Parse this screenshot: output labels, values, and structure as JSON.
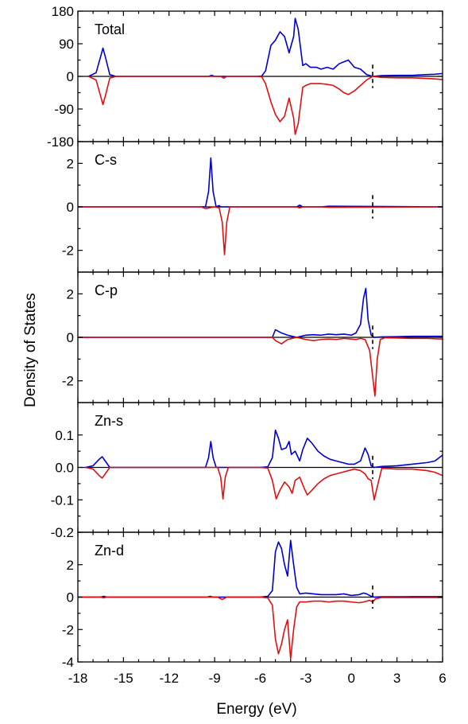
{
  "chart_data": {
    "type": "line",
    "xlabel": "Energy (eV)",
    "ylabel": "Density of States",
    "xlim": [
      -18,
      6
    ],
    "xticks": [
      -18,
      -15,
      -12,
      -9,
      -6,
      -3,
      0,
      3,
      6
    ],
    "xtick_labels": [
      "-18",
      "-15",
      "-12",
      "-9",
      "-6",
      "-3",
      "0",
      "3",
      "6"
    ],
    "fermi_level": 1.4,
    "colors": {
      "spin_up": "#0000cc",
      "spin_down": "#dd1111",
      "axes": "#000000"
    },
    "grid": false,
    "panels": [
      {
        "label": "Total",
        "ylim": [
          -180,
          180
        ],
        "yticks": [
          180,
          90,
          0,
          -90,
          -180
        ],
        "ytick_labels": [
          "180",
          "90",
          "0",
          "-90",
          "-180"
        ],
        "series": [
          {
            "x": [
              -17.3,
              -16.8,
              -16.5,
              -16.35,
              -16.2,
              -15.9,
              -15.5,
              -9.4,
              -9.2,
              -9.0,
              -6.2,
              -5.9,
              -5.65,
              -5.3,
              -5.0,
              -4.7,
              -4.4,
              -4.1,
              -3.8,
              -3.7,
              -3.5,
              -3.2,
              -3.0,
              -2.7,
              -2.3,
              -2.0,
              -1.6,
              -1.2,
              -0.8,
              -0.5,
              -0.2,
              0.2,
              0.6,
              1.0,
              1.4,
              2.0,
              3.0,
              4.0,
              5.0,
              5.5,
              6.0
            ],
            "y": [
              0,
              10,
              55,
              78,
              55,
              5,
              0,
              0,
              3,
              0,
              0,
              1,
              15,
              85,
              100,
              123,
              110,
              65,
              110,
              160,
              130,
              30,
              35,
              25,
              25,
              20,
              25,
              20,
              35,
              40,
              45,
              25,
              20,
              5,
              0,
              2,
              3,
              3,
              5,
              6,
              8
            ]
          },
          {
            "x": [
              -17.3,
              -16.8,
              -16.5,
              -16.35,
              -16.2,
              -15.9,
              -15.5,
              -8.6,
              -8.4,
              -8.2,
              -6.2,
              -5.9,
              -5.65,
              -5.3,
              -5.0,
              -4.7,
              -4.4,
              -4.1,
              -3.8,
              -3.7,
              -3.5,
              -3.2,
              -3.0,
              -2.7,
              -2.3,
              -2.0,
              -1.6,
              -1.2,
              -0.8,
              -0.5,
              -0.2,
              0.2,
              0.6,
              1.0,
              1.4,
              2.0,
              3.0,
              4.0,
              5.0,
              5.5,
              6.0
            ],
            "y": [
              0,
              -10,
              -55,
              -78,
              -55,
              -5,
              0,
              0,
              -5,
              0,
              0,
              -1,
              -20,
              -70,
              -105,
              -125,
              -110,
              -60,
              -115,
              -160,
              -130,
              -30,
              -25,
              -20,
              -20,
              -20,
              -22,
              -25,
              -35,
              -45,
              -50,
              -40,
              -25,
              -10,
              0,
              -3,
              -4,
              -4,
              -6,
              -7,
              -9
            ]
          }
        ]
      },
      {
        "label": "C-s",
        "ylim": [
          -3,
          3
        ],
        "yticks": [
          2,
          0,
          -2
        ],
        "ytick_labels": [
          "2",
          "0",
          "-2"
        ],
        "series": [
          {
            "x": [
              -18,
              -9.6,
              -9.4,
              -9.25,
              -9.1,
              -8.9,
              -8.7,
              -8.6,
              -3.6,
              -3.4,
              -3.2,
              -2.0,
              -1.5,
              6.0
            ],
            "y": [
              0,
              0,
              0.7,
              2.25,
              0.7,
              0,
              0.06,
              0,
              0,
              0.08,
              0,
              0,
              0.03,
              0
            ]
          },
          {
            "x": [
              -18,
              -9.9,
              -9.6,
              -9.0,
              -8.7,
              -8.5,
              -8.35,
              -8.2,
              -8.0,
              -7.9,
              -3.6,
              -3.4,
              -3.2,
              -2.0,
              -1.5,
              6.0
            ],
            "y": [
              0,
              0,
              -0.08,
              0,
              -0.05,
              -0.7,
              -2.2,
              -0.7,
              0,
              0,
              0,
              -0.05,
              0,
              0,
              -0.02,
              0
            ]
          }
        ]
      },
      {
        "label": "C-p",
        "ylim": [
          -3,
          3
        ],
        "yticks": [
          2,
          0,
          -2
        ],
        "ytick_labels": [
          "2",
          "0",
          "-2"
        ],
        "series": [
          {
            "x": [
              -18,
              -5.2,
              -5.0,
              -4.6,
              -4.2,
              -3.6,
              -3.0,
              -2.5,
              -2.0,
              -1.5,
              -1.0,
              -0.5,
              0.0,
              0.3,
              0.6,
              0.8,
              0.95,
              1.1,
              1.3,
              1.5,
              2.0,
              3.0,
              4.0,
              5.0,
              6.0
            ],
            "y": [
              0,
              0,
              0.35,
              0.2,
              0.1,
              0,
              0.1,
              0.12,
              0.1,
              0.15,
              0.12,
              0.15,
              0.1,
              0.2,
              0.6,
              1.8,
              2.25,
              0.8,
              0.1,
              0,
              0.02,
              0.03,
              0.05,
              0.05,
              0.05
            ]
          },
          {
            "x": [
              -18,
              -5.2,
              -5.0,
              -4.6,
              -4.2,
              -3.6,
              -3.0,
              -2.5,
              -2.0,
              -1.5,
              -1.0,
              -0.5,
              0.0,
              0.3,
              0.6,
              0.9,
              1.2,
              1.4,
              1.55,
              1.7,
              1.9,
              2.2,
              3.0,
              4.0,
              5.0,
              6.0
            ],
            "y": [
              0,
              0,
              -0.15,
              -0.3,
              -0.1,
              0,
              -0.1,
              -0.15,
              -0.1,
              -0.08,
              -0.1,
              -0.05,
              -0.08,
              -0.1,
              -0.05,
              -0.1,
              -0.6,
              -1.8,
              -2.7,
              -1.0,
              -0.1,
              -0.02,
              -0.03,
              -0.05,
              -0.05,
              -0.08
            ]
          }
        ]
      },
      {
        "label": "Zn-s",
        "ylim": [
          -0.2,
          0.2
        ],
        "yticks": [
          0.1,
          0.0,
          -0.1,
          -0.2
        ],
        "ytick_labels": [
          "0.1",
          "0.0",
          "-0.1",
          "-0.2"
        ],
        "series": [
          {
            "x": [
              -17.5,
              -17.0,
              -16.6,
              -16.4,
              -16.2,
              -15.9,
              -9.6,
              -9.4,
              -9.25,
              -9.1,
              -8.9,
              -6.0,
              -5.5,
              -5.2,
              -5.0,
              -4.8,
              -4.6,
              -4.3,
              -4.1,
              -3.95,
              -3.7,
              -3.4,
              -3.2,
              -2.9,
              -2.6,
              -2.2,
              -1.8,
              -1.4,
              -1.0,
              -0.6,
              -0.2,
              0.2,
              0.6,
              0.9,
              1.1,
              1.3,
              1.5,
              2.0,
              3.0,
              4.0,
              5.0,
              5.5,
              6.0
            ],
            "y": [
              0,
              0.005,
              0.025,
              0.033,
              0.02,
              0,
              0,
              0.03,
              0.08,
              0.03,
              0,
              0,
              0.002,
              0.03,
              0.115,
              0.09,
              0.055,
              0.06,
              0.08,
              0.04,
              0.05,
              0.02,
              0.055,
              0.09,
              0.075,
              0.05,
              0.035,
              0.025,
              0.02,
              0.015,
              0.01,
              0.01,
              0.02,
              0.06,
              0.04,
              0.005,
              0,
              0.003,
              0.005,
              0.01,
              0.015,
              0.02,
              0.038
            ]
          },
          {
            "x": [
              -17.5,
              -17.0,
              -16.6,
              -16.4,
              -16.2,
              -15.9,
              -8.8,
              -8.6,
              -8.45,
              -8.3,
              -8.1,
              -6.0,
              -5.5,
              -5.2,
              -4.95,
              -4.7,
              -4.4,
              -4.1,
              -3.9,
              -3.7,
              -3.4,
              -3.1,
              -2.9,
              -2.6,
              -2.2,
              -1.8,
              -1.4,
              -1.0,
              -0.6,
              -0.2,
              0.2,
              0.6,
              0.9,
              1.1,
              1.3,
              1.5,
              1.7,
              2.0,
              3.0,
              4.0,
              5.0,
              5.5,
              6.0
            ],
            "y": [
              0,
              -0.005,
              -0.025,
              -0.033,
              -0.02,
              0,
              0,
              -0.03,
              -0.097,
              -0.03,
              0,
              0,
              -0.002,
              -0.04,
              -0.097,
              -0.07,
              -0.045,
              -0.06,
              -0.08,
              -0.04,
              -0.03,
              -0.065,
              -0.085,
              -0.07,
              -0.05,
              -0.035,
              -0.025,
              -0.02,
              -0.015,
              -0.01,
              -0.005,
              -0.01,
              -0.02,
              -0.035,
              -0.04,
              -0.1,
              -0.06,
              -0.003,
              -0.005,
              -0.005,
              -0.01,
              -0.015,
              -0.025
            ]
          }
        ]
      },
      {
        "label": "Zn-d",
        "ylim": [
          -4,
          4
        ],
        "yticks": [
          2,
          0,
          -2,
          -4
        ],
        "ytick_labels": [
          "2",
          "0",
          "-2",
          "-4"
        ],
        "series": [
          {
            "x": [
              -18,
              -16.5,
              -16.3,
              -16.1,
              -9.5,
              -9.3,
              -9.1,
              -6.0,
              -5.5,
              -5.2,
              -5.0,
              -4.8,
              -4.6,
              -4.4,
              -4.2,
              -4.0,
              -3.8,
              -3.6,
              -3.4,
              -3.0,
              -2.5,
              -2.0,
              -1.5,
              -1.0,
              -0.5,
              0.0,
              0.5,
              0.8,
              1.0,
              1.3,
              1.5,
              2.0,
              3.0,
              4.0,
              5.0,
              6.0
            ],
            "y": [
              0,
              0,
              0.05,
              0,
              0,
              0.05,
              0,
              0,
              0.05,
              0.4,
              2.8,
              3.4,
              3.0,
              2.0,
              1.3,
              3.5,
              2.0,
              0.6,
              0.2,
              0.25,
              0.2,
              0.15,
              0.15,
              0.15,
              0.2,
              0.1,
              0.15,
              0.25,
              0.2,
              0.05,
              0,
              0.02,
              0.02,
              0.03,
              0.03,
              0.03
            ]
          },
          {
            "x": [
              -18,
              -16.5,
              -16.3,
              -16.1,
              -8.8,
              -8.5,
              -8.2,
              -6.0,
              -5.5,
              -5.2,
              -5.0,
              -4.8,
              -4.6,
              -4.4,
              -4.2,
              -4.0,
              -3.8,
              -3.6,
              -3.4,
              -3.0,
              -2.5,
              -2.0,
              -1.5,
              -1.0,
              -0.5,
              0.0,
              0.5,
              0.8,
              1.0,
              1.2,
              1.4,
              1.6,
              2.0,
              3.0,
              4.0,
              5.0,
              6.0
            ],
            "y": [
              0,
              0,
              -0.05,
              0,
              0,
              -0.15,
              0,
              0,
              -0.05,
              -0.5,
              -2.6,
              -3.5,
              -2.9,
              -2.0,
              -1.4,
              -3.8,
              -2.0,
              -0.6,
              -0.3,
              -0.3,
              -0.25,
              -0.25,
              -0.3,
              -0.25,
              -0.25,
              -0.3,
              -0.35,
              -0.3,
              -0.25,
              -0.2,
              -0.3,
              -0.1,
              -0.02,
              -0.03,
              -0.03,
              -0.03,
              -0.03
            ]
          }
        ]
      }
    ]
  }
}
